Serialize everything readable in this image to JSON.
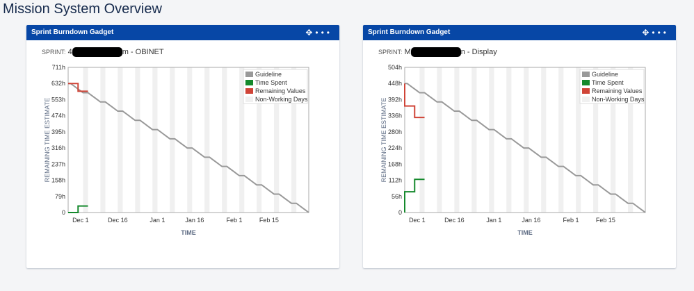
{
  "page_title": "Mission System Overview",
  "colors": {
    "header": "#0747a6",
    "guideline": "#999999",
    "time_spent": "#14892c",
    "remaining": "#d04437",
    "non_working": "#f0f0f0"
  },
  "gadgets": [
    {
      "title": "Sprint Burndown Gadget",
      "icons": [
        "move-icon",
        "more-icon"
      ],
      "sprint_label": "SPRINT:",
      "sprint_prefix": "4",
      "sprint_suffix": "m - OBINET",
      "chart_data": {
        "type": "line",
        "xlabel": "TIME",
        "ylabel": "REMAINING TIME ESTIMATE",
        "ylim": [
          0,
          711
        ],
        "yticks": [
          "0",
          "79h",
          "158h",
          "237h",
          "316h",
          "395h",
          "474h",
          "553h",
          "632h",
          "711h"
        ],
        "xlim": [
          "2023-11-26",
          "2024-03-02"
        ],
        "xticks": [
          {
            "label": "Dec 1",
            "date": "2023-12-01"
          },
          {
            "label": "Dec 16",
            "date": "2023-12-16"
          },
          {
            "label": "Jan 1",
            "date": "2024-01-01"
          },
          {
            "label": "Jan 16",
            "date": "2024-01-16"
          },
          {
            "label": "Feb 1",
            "date": "2024-02-01"
          },
          {
            "label": "Feb 15",
            "date": "2024-02-15"
          }
        ],
        "non_working_days": "weekends",
        "guideline_start": 632,
        "legend": [
          "Guideline",
          "Time Spent",
          "Remaining Values",
          "Non-Working Days"
        ],
        "legend_position": "top-right",
        "series": [
          {
            "name": "Remaining Values",
            "points": [
              [
                "2023-11-26",
                632
              ],
              [
                "2023-11-30",
                632
              ],
              [
                "2023-11-30",
                594
              ],
              [
                "2023-12-04",
                594
              ]
            ]
          },
          {
            "name": "Time Spent",
            "points": [
              [
                "2023-11-26",
                0
              ],
              [
                "2023-11-30",
                0
              ],
              [
                "2023-11-30",
                32
              ],
              [
                "2023-12-04",
                32
              ]
            ]
          }
        ]
      }
    },
    {
      "title": "Sprint Burndown Gadget",
      "icons": [
        "move-icon",
        "more-icon"
      ],
      "sprint_label": "SPRINT:",
      "sprint_prefix": "M",
      "sprint_suffix": "n - Display",
      "chart_data": {
        "type": "line",
        "xlabel": "TIME",
        "ylabel": "REMAINING TIME ESTIMATE",
        "ylim": [
          0,
          504
        ],
        "yticks": [
          "0",
          "56h",
          "112h",
          "168h",
          "224h",
          "280h",
          "336h",
          "392h",
          "448h",
          "504h"
        ],
        "xlim": [
          "2023-11-26",
          "2024-03-02"
        ],
        "xticks": [
          {
            "label": "Dec 1",
            "date": "2023-12-01"
          },
          {
            "label": "Dec 16",
            "date": "2023-12-16"
          },
          {
            "label": "Jan 1",
            "date": "2024-01-01"
          },
          {
            "label": "Jan 16",
            "date": "2024-01-16"
          },
          {
            "label": "Feb 1",
            "date": "2024-02-01"
          },
          {
            "label": "Feb 15",
            "date": "2024-02-15"
          }
        ],
        "non_working_days": "weekends",
        "guideline_start": 448,
        "legend": [
          "Guideline",
          "Time Spent",
          "Remaining Values",
          "Non-Working Days"
        ],
        "legend_position": "top-right",
        "series": [
          {
            "name": "Remaining Values",
            "points": [
              [
                "2023-11-26",
                448
              ],
              [
                "2023-11-26",
                370
              ],
              [
                "2023-11-30",
                370
              ],
              [
                "2023-11-30",
                330
              ],
              [
                "2023-12-04",
                330
              ]
            ]
          },
          {
            "name": "Time Spent",
            "points": [
              [
                "2023-11-26",
                0
              ],
              [
                "2023-11-26",
                72
              ],
              [
                "2023-11-30",
                72
              ],
              [
                "2023-11-30",
                115
              ],
              [
                "2023-12-04",
                115
              ]
            ]
          }
        ]
      }
    }
  ]
}
